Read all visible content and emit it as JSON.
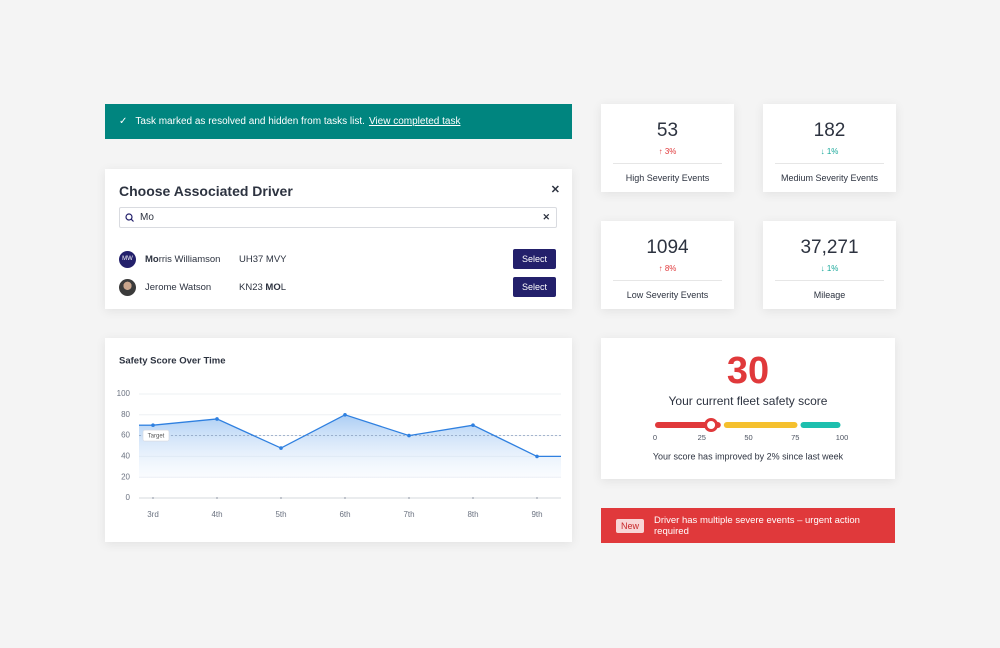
{
  "toast": {
    "text": "Task marked as resolved and hidden from tasks list.",
    "link": "View completed task"
  },
  "stats": [
    {
      "value": "53",
      "change": "↑ 3%",
      "trend": "up",
      "label": "High Severity Events"
    },
    {
      "value": "182",
      "change": "↓ 1%",
      "trend": "down",
      "label": "Medium Severity Events"
    },
    {
      "value": "1094",
      "change": "↑ 8%",
      "trend": "up",
      "label": "Low Severity Events"
    },
    {
      "value": "37,271",
      "change": "↓ 1%",
      "trend": "down",
      "label": "Mileage"
    }
  ],
  "driver_modal": {
    "title": "Choose Associated Driver",
    "search": "Mo",
    "drivers": [
      {
        "initials": "MW",
        "name": [
          {
            "text": "Mo",
            "bold": true
          },
          {
            "text": "rris Williamson",
            "bold": false
          }
        ],
        "plate": [
          {
            "text": "UH37 MVY",
            "bold": false
          }
        ],
        "button": "Select"
      },
      {
        "initials": null,
        "name": [
          {
            "text": "Jerome Watson",
            "bold": false
          }
        ],
        "plate": [
          {
            "text": "KN23 ",
            "bold": false
          },
          {
            "text": "MO",
            "bold": true
          },
          {
            "text": "L",
            "bold": false
          }
        ],
        "button": "Select"
      }
    ]
  },
  "chart_data": {
    "type": "line",
    "title": "Safety Score Over Time",
    "categories": [
      "3rd",
      "4th",
      "5th",
      "6th",
      "7th",
      "8th",
      "9th"
    ],
    "values": [
      70,
      76,
      48,
      80,
      60,
      70,
      40
    ],
    "color": "#2f80e0",
    "ylim": [
      0,
      100
    ],
    "yticks": [
      0,
      20,
      40,
      60,
      80,
      100
    ],
    "grid": true,
    "target": {
      "value": 60,
      "label": "Target"
    }
  },
  "gauge": {
    "score": 30,
    "caption": "Your current fleet safety score",
    "lim": [
      0,
      100
    ],
    "ticks": [
      0,
      25,
      50,
      75,
      100
    ],
    "segments": [
      {
        "from": 0,
        "to": 36,
        "color": "#e0393b"
      },
      {
        "from": 36,
        "to": 77,
        "color": "#f5c02e"
      },
      {
        "from": 77,
        "to": 100,
        "color": "#1dbfae"
      }
    ],
    "note": "Your score has improved by 2% since last week"
  },
  "alert": {
    "badge": "New",
    "text": "Driver has multiple severe events – urgent action required"
  }
}
